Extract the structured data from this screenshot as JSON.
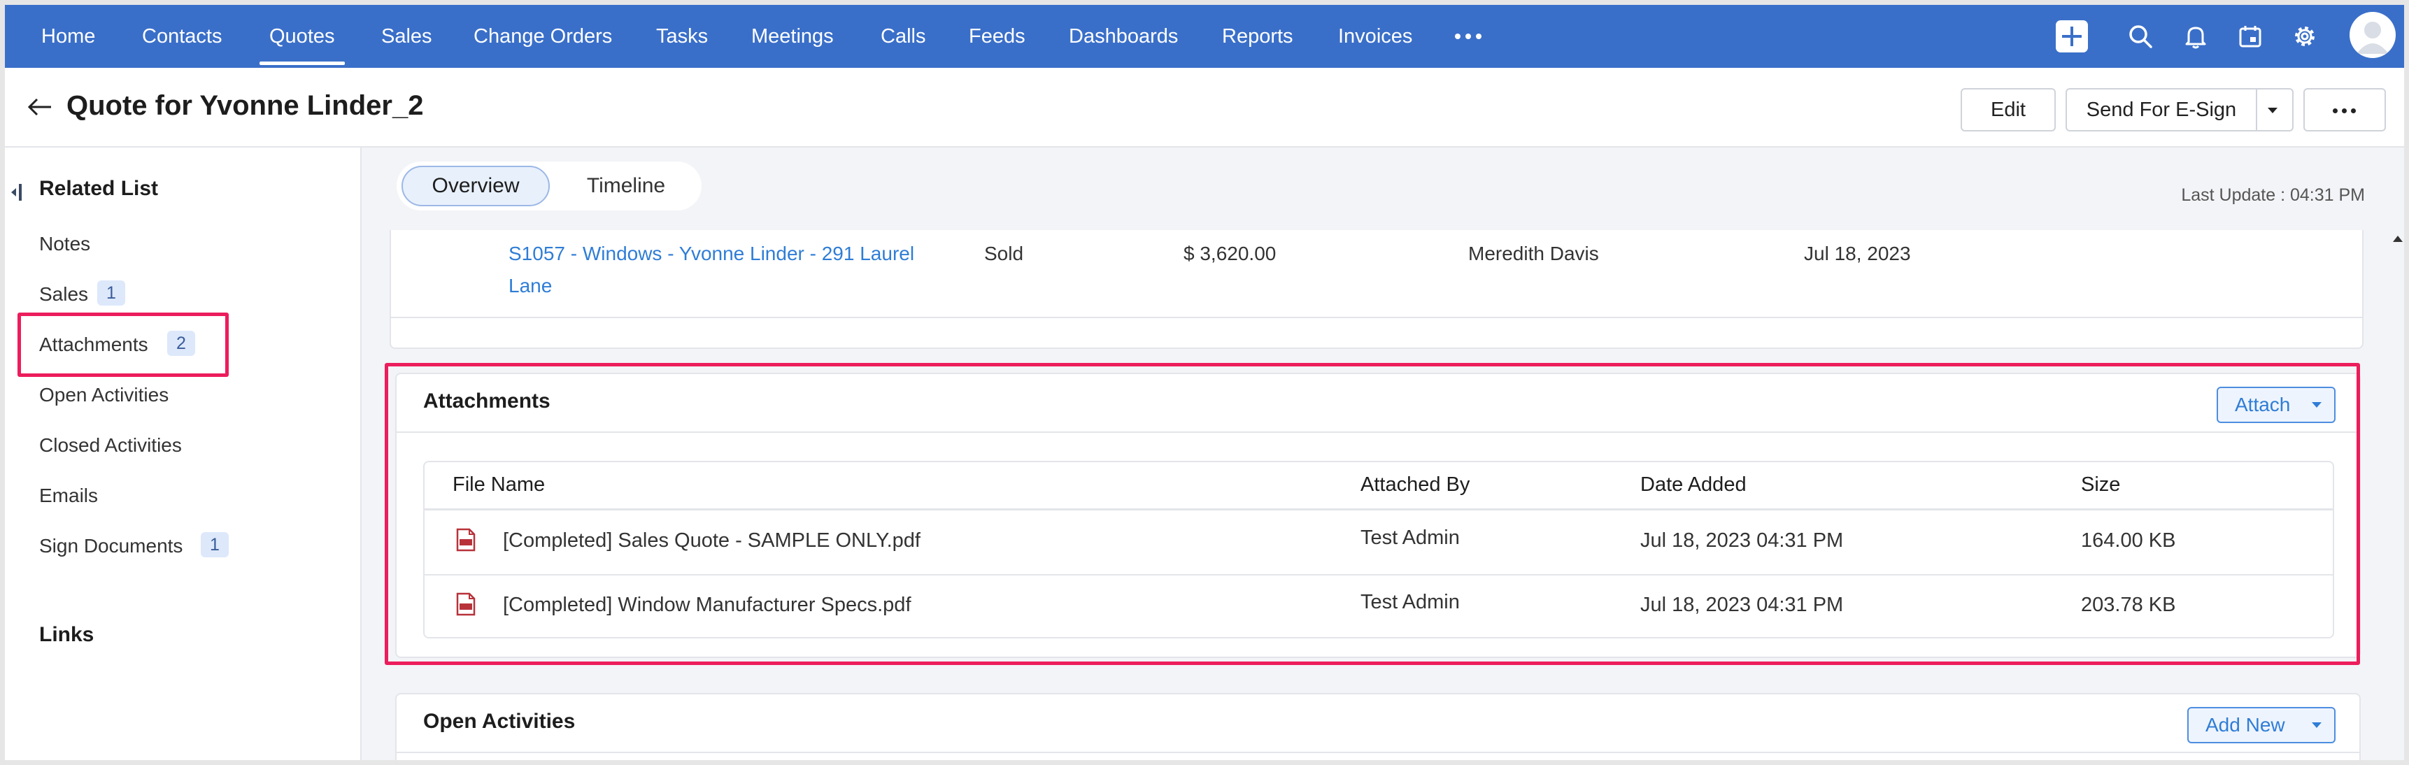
{
  "nav": {
    "items": [
      "Home",
      "Contacts",
      "Quotes",
      "Sales",
      "Change Orders",
      "Tasks",
      "Meetings",
      "Calls",
      "Feeds",
      "Dashboards",
      "Reports",
      "Invoices"
    ],
    "active": "Quotes"
  },
  "header": {
    "title": "Quote for Yvonne Linder_2",
    "edit_label": "Edit",
    "esign_label": "Send For E-Sign"
  },
  "sidebar": {
    "heading": "Related List",
    "items": [
      {
        "label": "Notes",
        "badge": ""
      },
      {
        "label": "Sales",
        "badge": "1"
      },
      {
        "label": "Attachments",
        "badge": "2"
      },
      {
        "label": "Open Activities",
        "badge": ""
      },
      {
        "label": "Closed Activities",
        "badge": ""
      },
      {
        "label": "Emails",
        "badge": ""
      },
      {
        "label": "Sign Documents",
        "badge": "1"
      }
    ],
    "links_heading": "Links"
  },
  "tabs": {
    "overview": "Overview",
    "timeline": "Timeline"
  },
  "last_update": "Last Update : 04:31 PM",
  "sales_row": {
    "name_line1": "S1057 - Windows - Yvonne Linder - 291 Laurel",
    "name_line2": "Lane",
    "stage": "Sold",
    "amount": "$ 3,620.00",
    "owner": "Meredith Davis",
    "date": "Jul 18, 2023"
  },
  "attachments": {
    "title": "Attachments",
    "attach_label": "Attach",
    "columns": [
      "File Name",
      "Attached By",
      "Date Added",
      "Size"
    ],
    "rows": [
      {
        "file": "[Completed] Sales Quote - SAMPLE ONLY.pdf",
        "by": "Test Admin",
        "date": "Jul 18, 2023 04:31 PM",
        "size": "164.00 KB"
      },
      {
        "file": "[Completed] Window Manufacturer Specs.pdf",
        "by": "Test Admin",
        "date": "Jul 18, 2023 04:31 PM",
        "size": "203.78 KB"
      }
    ]
  },
  "open_activities": {
    "title": "Open Activities",
    "add_label": "Add New"
  },
  "colors": {
    "nav_bg": "#3a6fc9",
    "link": "#2f7dd6",
    "highlight": "#ec1d5c",
    "badge_bg": "#dde8fb"
  },
  "icons": [
    "plus-icon",
    "search-icon",
    "bell-icon",
    "calendar-icon",
    "gear-icon",
    "avatar-icon",
    "back-arrow-icon",
    "collapse-icon",
    "pdf-icon",
    "more-icon"
  ]
}
